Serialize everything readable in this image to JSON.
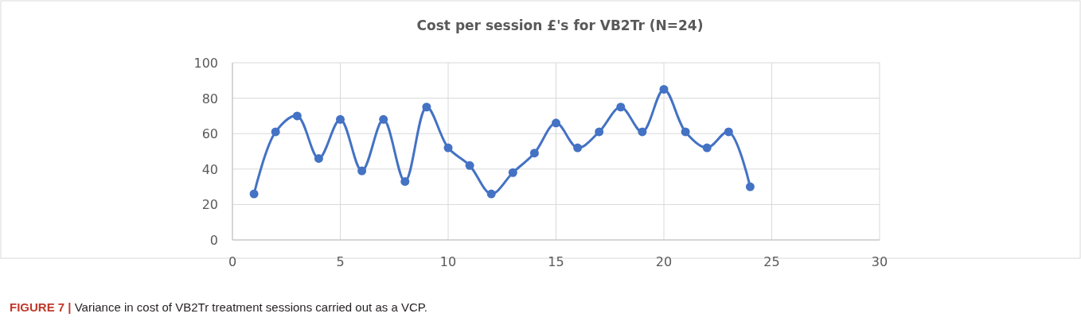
{
  "chart_data": {
    "type": "line",
    "title": "Cost per session £'s for VB2Tr (N=24)",
    "x": [
      1,
      2,
      3,
      4,
      5,
      6,
      7,
      8,
      9,
      10,
      11,
      12,
      13,
      14,
      15,
      16,
      17,
      18,
      19,
      20,
      21,
      22,
      23,
      24
    ],
    "series": [
      {
        "color": "#4472c4",
        "values": [
          26,
          61,
          70,
          46,
          68,
          39,
          68,
          33,
          75,
          52,
          42,
          26,
          38,
          49,
          66,
          52,
          61,
          75,
          61,
          85,
          61,
          52,
          61,
          30
        ]
      }
    ],
    "xlim": [
      0,
      30
    ],
    "xticks": [
      0,
      5,
      10,
      15,
      20,
      25,
      30
    ],
    "ylim": [
      0,
      100
    ],
    "yticks": [
      0,
      20,
      40,
      60,
      80,
      100
    ],
    "grid": true,
    "marker": "circle",
    "line_style": "solid",
    "annotations": [
      "FIGURE 7 | Variance in cost of VB2Tr treatment sessions carried out as a VCP."
    ]
  }
}
